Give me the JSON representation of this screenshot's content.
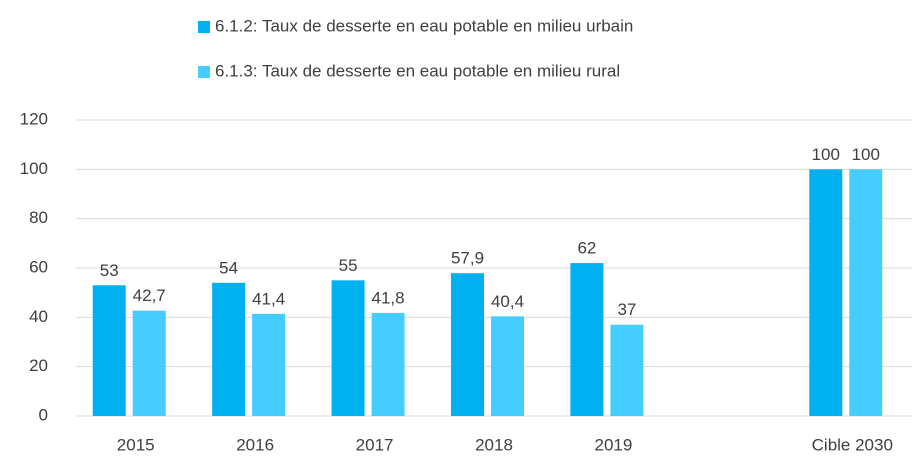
{
  "chart_data": {
    "type": "bar",
    "categories": [
      "2015",
      "2016",
      "2017",
      "2018",
      "2019",
      null,
      "Cible 2030"
    ],
    "series": [
      {
        "name": "6.1.2: Taux de desserte en eau potable en milieu urbain",
        "color": "#00b0f0",
        "values": [
          53,
          54,
          55,
          57.9,
          62,
          null,
          100
        ],
        "value_labels": [
          "53",
          "54",
          "55",
          "57,9",
          "62",
          null,
          "100"
        ]
      },
      {
        "name": "6.1.3: Taux de desserte en eau potable en milieu rural",
        "color": "#45cdff",
        "values": [
          42.7,
          41.4,
          41.8,
          40.4,
          37,
          null,
          100
        ],
        "value_labels": [
          "42,7",
          "41,4",
          "41,8",
          "40,4",
          "37",
          null,
          "100"
        ]
      }
    ],
    "ylim": [
      0,
      120
    ],
    "yticks": [
      0,
      20,
      40,
      60,
      80,
      100,
      120
    ],
    "grid": true,
    "legend": "top"
  }
}
